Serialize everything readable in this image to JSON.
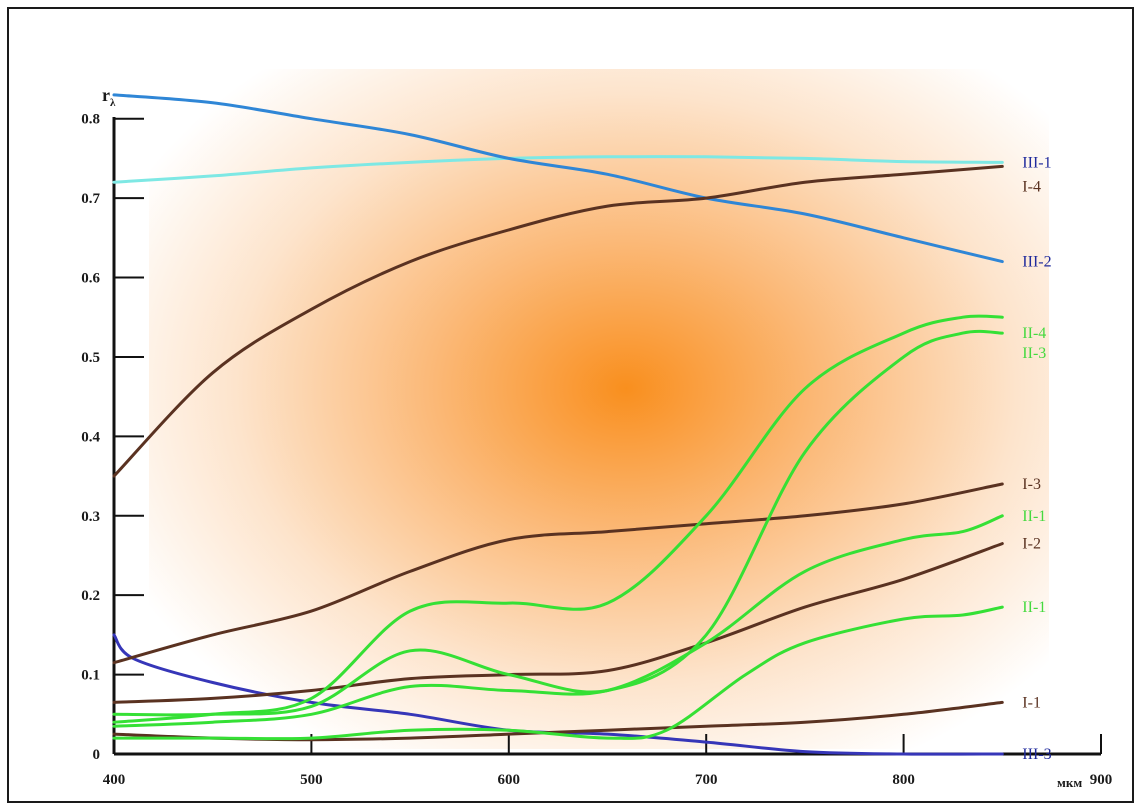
{
  "chart_data": {
    "type": "line",
    "ylabel": "r",
    "ylabel_sub": "λ",
    "xunit": "мкм",
    "xlim": [
      400,
      900
    ],
    "ylim": [
      0,
      0.85
    ],
    "xticks": [
      {
        "value": 400,
        "label": "400"
      },
      {
        "value": 500,
        "label": "500"
      },
      {
        "value": 600,
        "label": "600"
      },
      {
        "value": 700,
        "label": "700"
      },
      {
        "value": 800,
        "label": "800"
      },
      {
        "value": 900,
        "label": "900"
      }
    ],
    "yticks": [
      {
        "value": 0,
        "label": "0"
      },
      {
        "value": 0.1,
        "label": "0.1"
      },
      {
        "value": 0.2,
        "label": "0.2"
      },
      {
        "value": 0.3,
        "label": "0.3"
      },
      {
        "value": 0.4,
        "label": "0.4"
      },
      {
        "value": 0.5,
        "label": "0.5"
      },
      {
        "value": 0.6,
        "label": "0.6"
      },
      {
        "value": 0.7,
        "label": "0.7"
      },
      {
        "value": 0.8,
        "label": "0.8"
      }
    ],
    "background_gradient": {
      "center": "#f98f1e",
      "edge": "#ffffff"
    },
    "series": [
      {
        "label": "III-1",
        "color": "#7ee8e4",
        "label_color": "#1f2a9c",
        "x": [
          400,
          450,
          500,
          550,
          600,
          650,
          700,
          750,
          800,
          850
        ],
        "y": [
          0.72,
          0.728,
          0.738,
          0.745,
          0.75,
          0.752,
          0.752,
          0.75,
          0.746,
          0.745
        ]
      },
      {
        "label": "III-2",
        "color": "#2f86d6",
        "label_color": "#1f2a9c",
        "x": [
          400,
          450,
          500,
          550,
          600,
          650,
          700,
          750,
          800,
          850
        ],
        "y": [
          0.83,
          0.82,
          0.8,
          0.78,
          0.75,
          0.73,
          0.7,
          0.68,
          0.65,
          0.62
        ]
      },
      {
        "label": "III-3",
        "color": "#3636b8",
        "label_color": "#1f2a9c",
        "x": [
          400,
          410,
          450,
          500,
          550,
          600,
          650,
          700,
          750,
          800,
          850
        ],
        "y": [
          0.15,
          0.12,
          0.09,
          0.065,
          0.05,
          0.03,
          0.025,
          0.015,
          0.003,
          0.0,
          0.0
        ]
      },
      {
        "label": "I-4",
        "color": "#5a3221",
        "label_color": "#5a3221",
        "x": [
          400,
          450,
          500,
          550,
          600,
          650,
          700,
          750,
          800,
          850
        ],
        "y": [
          0.35,
          0.48,
          0.56,
          0.62,
          0.66,
          0.69,
          0.7,
          0.72,
          0.73,
          0.74
        ]
      },
      {
        "label": "I-3",
        "color": "#5a3221",
        "label_color": "#5a3221",
        "x": [
          400,
          450,
          500,
          550,
          600,
          650,
          700,
          750,
          800,
          850
        ],
        "y": [
          0.115,
          0.15,
          0.18,
          0.23,
          0.27,
          0.28,
          0.29,
          0.3,
          0.315,
          0.34
        ]
      },
      {
        "label": "I-2",
        "color": "#5a3221",
        "label_color": "#5a3221",
        "x": [
          400,
          450,
          500,
          550,
          600,
          650,
          700,
          750,
          800,
          850
        ],
        "y": [
          0.065,
          0.07,
          0.08,
          0.095,
          0.1,
          0.105,
          0.14,
          0.185,
          0.22,
          0.265
        ]
      },
      {
        "label": "I-1",
        "color": "#5a3221",
        "label_color": "#5a3221",
        "x": [
          400,
          450,
          500,
          550,
          600,
          650,
          700,
          750,
          800,
          850
        ],
        "y": [
          0.025,
          0.02,
          0.018,
          0.02,
          0.025,
          0.03,
          0.035,
          0.04,
          0.05,
          0.065
        ]
      },
      {
        "label": "II-4",
        "color": "#35e035",
        "label_color": "#45d93f",
        "x": [
          400,
          450,
          500,
          550,
          600,
          650,
          700,
          750,
          800,
          830,
          850
        ],
        "y": [
          0.05,
          0.05,
          0.06,
          0.13,
          0.1,
          0.08,
          0.15,
          0.38,
          0.5,
          0.53,
          0.53
        ]
      },
      {
        "label": "II-3",
        "color": "#35e035",
        "label_color": "#45d93f",
        "x": [
          400,
          450,
          500,
          550,
          600,
          650,
          700,
          750,
          800,
          830,
          850
        ],
        "y": [
          0.04,
          0.05,
          0.07,
          0.18,
          0.19,
          0.19,
          0.3,
          0.46,
          0.53,
          0.55,
          0.55
        ]
      },
      {
        "label": "II-1",
        "color": "#35e035",
        "label_color": "#45d93f",
        "x": [
          400,
          450,
          500,
          550,
          600,
          650,
          700,
          750,
          800,
          830,
          850
        ],
        "y": [
          0.035,
          0.04,
          0.05,
          0.085,
          0.08,
          0.08,
          0.14,
          0.23,
          0.27,
          0.28,
          0.3
        ]
      },
      {
        "label": "II-1",
        "color": "#35e035",
        "label_color": "#45d93f",
        "x": [
          400,
          450,
          500,
          550,
          600,
          650,
          680,
          720,
          750,
          800,
          830,
          850
        ],
        "y": [
          0.02,
          0.02,
          0.02,
          0.03,
          0.03,
          0.02,
          0.03,
          0.1,
          0.14,
          0.17,
          0.175,
          0.185
        ]
      }
    ]
  }
}
